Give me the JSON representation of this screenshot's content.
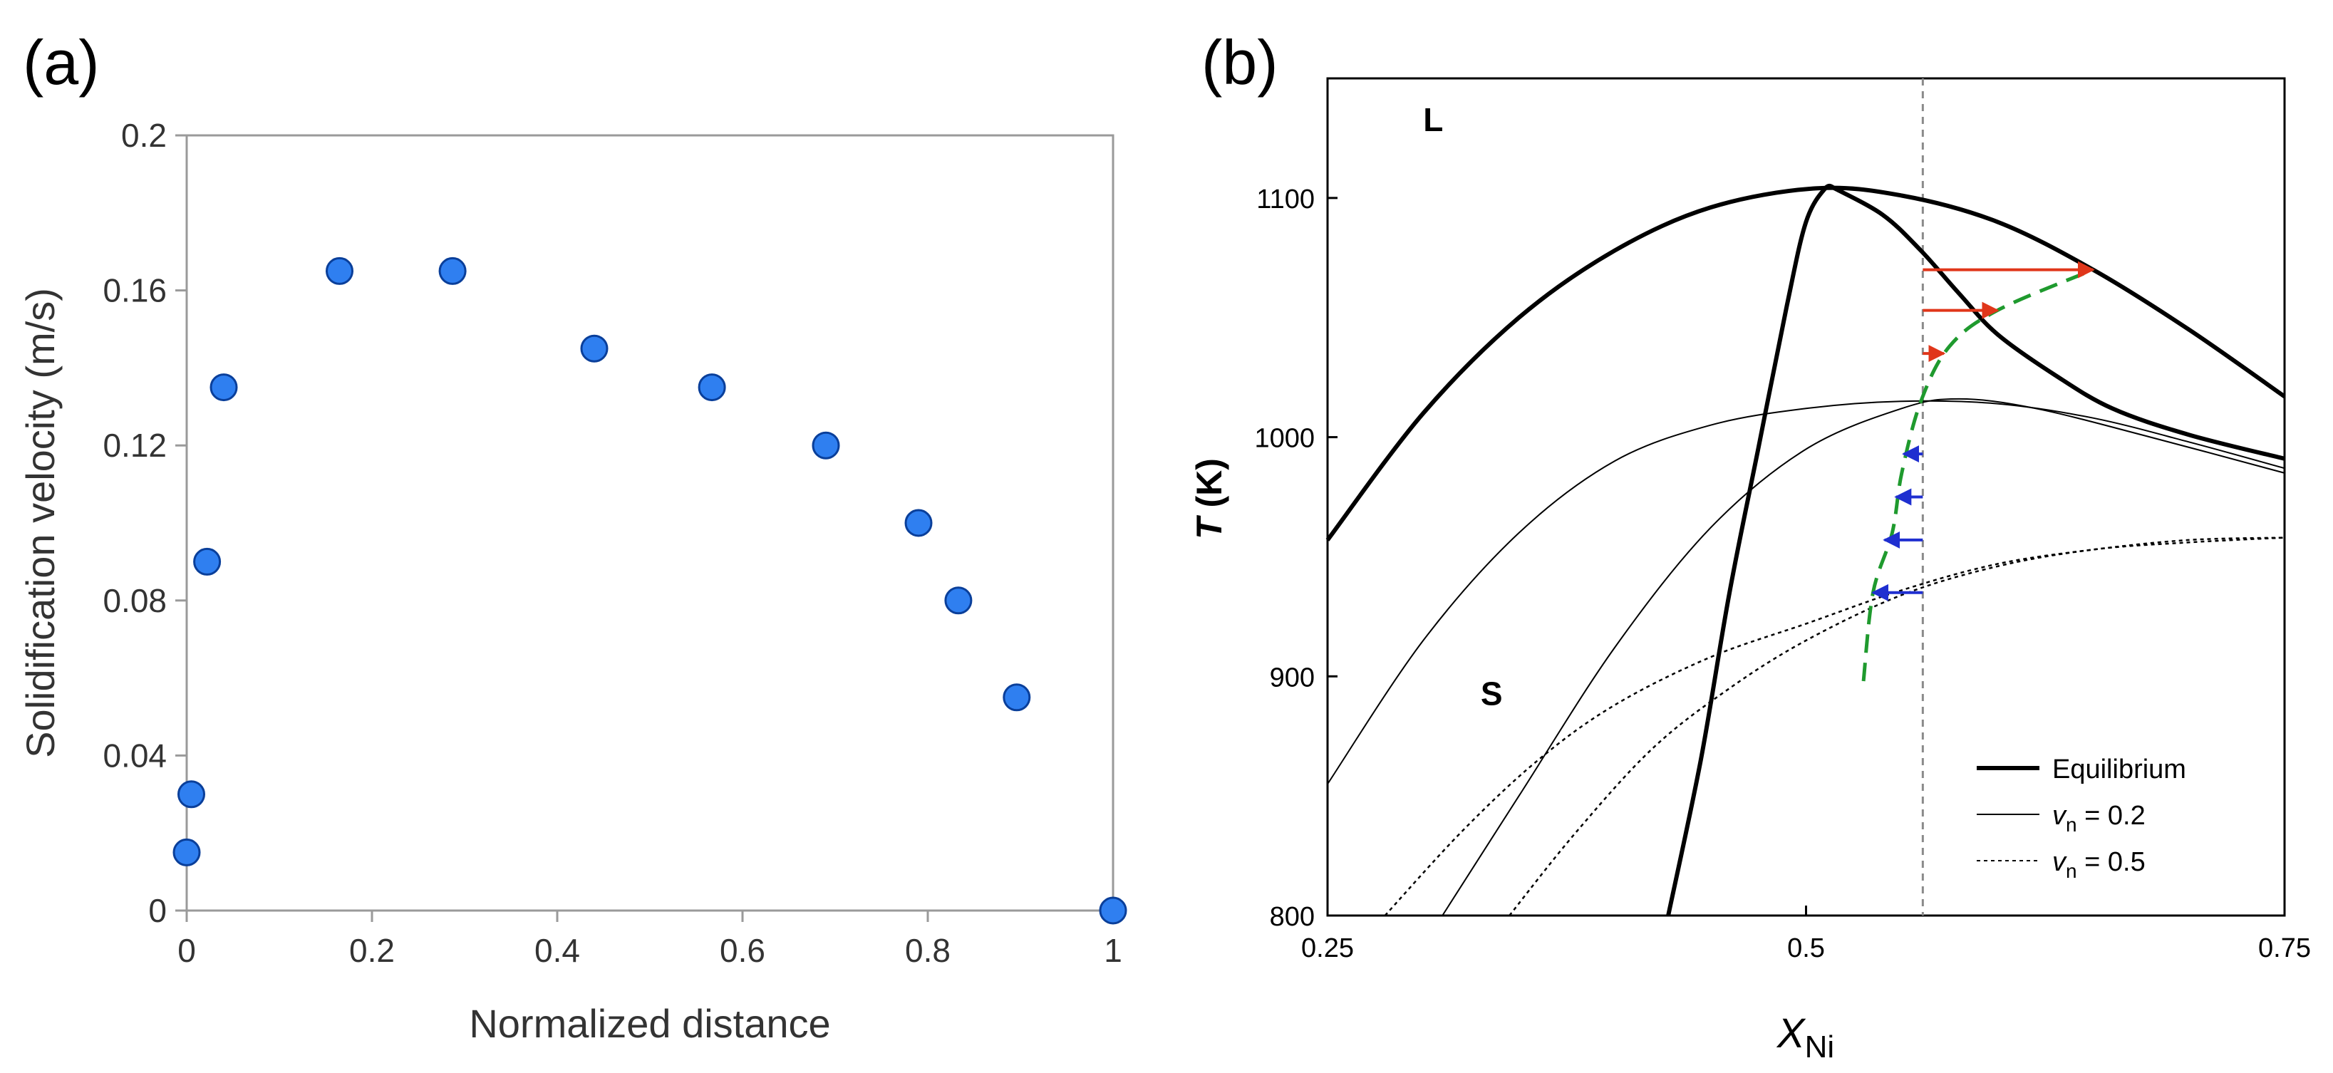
{
  "colors": {
    "marker_fill": "#2f7ff0",
    "marker_stroke": "#0a3f9a",
    "axis": "#9a9a9a",
    "red_arrow": "#e0361a",
    "blue_arrow": "#1f2fd0",
    "green_dash": "#1f9a2e",
    "curve": "#000000",
    "guide": "#8a8a8a"
  },
  "chart_data": [
    {
      "panel_label": "(a)",
      "type": "scatter",
      "title": "",
      "xlabel": "Normalized distance",
      "ylabel": "Solidification velocity (m/s)",
      "xlim": [
        0,
        1
      ],
      "ylim": [
        0,
        0.2
      ],
      "xticks": [
        0,
        0.2,
        0.4,
        0.6,
        0.8,
        1
      ],
      "xtick_labels": [
        "0",
        "0.2",
        "0.4",
        "0.6",
        "0.8",
        "1"
      ],
      "yticks": [
        0,
        0.04,
        0.08,
        0.12,
        0.16,
        0.2
      ],
      "ytick_labels": [
        "0",
        "0.04",
        "0.08",
        "0.12",
        "0.16",
        "0.2"
      ],
      "points": [
        {
          "x": 0.0,
          "y": 0.015
        },
        {
          "x": 0.005,
          "y": 0.03
        },
        {
          "x": 0.022,
          "y": 0.09
        },
        {
          "x": 0.04,
          "y": 0.135
        },
        {
          "x": 0.165,
          "y": 0.165
        },
        {
          "x": 0.287,
          "y": 0.165
        },
        {
          "x": 0.44,
          "y": 0.145
        },
        {
          "x": 0.567,
          "y": 0.135
        },
        {
          "x": 0.69,
          "y": 0.12
        },
        {
          "x": 0.79,
          "y": 0.1
        },
        {
          "x": 0.833,
          "y": 0.08
        },
        {
          "x": 0.896,
          "y": 0.055
        },
        {
          "x": 1.0,
          "y": 0.0
        }
      ]
    },
    {
      "panel_label": "(b)",
      "type": "line",
      "title": "",
      "xlabel_main": "X",
      "xlabel_sub": "Ni",
      "ylabel_italic": "T",
      "ylabel_rest": " (K)",
      "xlim": [
        0.25,
        0.75
      ],
      "ylim": [
        800,
        1150
      ],
      "xticks": [
        0.25,
        0.5,
        0.75
      ],
      "xtick_labels": [
        "0.25",
        "0.5",
        "0.75"
      ],
      "yticks": [
        800,
        900,
        1000,
        1100
      ],
      "ytick_labels": [
        "800",
        "900",
        "1000",
        "1100"
      ],
      "region_labels": [
        {
          "text": "L",
          "x": 0.3,
          "y": 1128
        },
        {
          "text": "S",
          "x": 0.33,
          "y": 888
        }
      ],
      "guide_x": 0.561,
      "legend": {
        "position": "bottom-right",
        "entries": [
          {
            "style": "equilibrium",
            "label": "Equilibrium",
            "var": "",
            "value": ""
          },
          {
            "style": "v02",
            "label": "",
            "var": "v",
            "sub": "n",
            "value": " = 0.2"
          },
          {
            "style": "v05",
            "label": "",
            "var": "v",
            "sub": "n",
            "value": " = 0.5"
          }
        ]
      },
      "series": [
        {
          "name": "Equilibrium liquidus",
          "style": "equilibrium",
          "points": [
            [
              0.25,
              957
            ],
            [
              0.3,
              1010
            ],
            [
              0.35,
              1050
            ],
            [
              0.4,
              1078
            ],
            [
              0.45,
              1096
            ],
            [
              0.505,
              1104
            ],
            [
              0.55,
              1101
            ],
            [
              0.6,
              1090
            ],
            [
              0.65,
              1070
            ],
            [
              0.7,
              1045
            ],
            [
              0.75,
              1017
            ]
          ]
        },
        {
          "name": "Equilibrium solidus (right)",
          "style": "equilibrium",
          "points": [
            [
              0.515,
              1104
            ],
            [
              0.54,
              1093
            ],
            [
              0.56,
              1078
            ],
            [
              0.58,
              1060
            ],
            [
              0.6,
              1043
            ],
            [
              0.63,
              1026
            ],
            [
              0.66,
              1012
            ],
            [
              0.7,
              1001
            ],
            [
              0.75,
              991
            ]
          ]
        },
        {
          "name": "Equilibrium solidus (left)",
          "style": "equilibrium",
          "points": [
            [
              0.428,
              800
            ],
            [
              0.445,
              865
            ],
            [
              0.46,
              935
            ],
            [
              0.475,
              995
            ],
            [
              0.49,
              1055
            ],
            [
              0.5,
              1090
            ],
            [
              0.51,
              1104
            ],
            [
              0.515,
              1104
            ]
          ]
        },
        {
          "name": "v=0.2 upper",
          "style": "v02",
          "points": [
            [
              0.25,
              855
            ],
            [
              0.3,
              915
            ],
            [
              0.35,
              960
            ],
            [
              0.4,
              990
            ],
            [
              0.45,
              1005
            ],
            [
              0.5,
              1012
            ],
            [
              0.55,
              1015
            ],
            [
              0.6,
              1014
            ],
            [
              0.65,
              1008
            ],
            [
              0.7,
              998
            ],
            [
              0.75,
              987
            ]
          ]
        },
        {
          "name": "v=0.2 lower",
          "style": "v02",
          "points": [
            [
              0.31,
              800
            ],
            [
              0.35,
              850
            ],
            [
              0.4,
              912
            ],
            [
              0.45,
              962
            ],
            [
              0.5,
              995
            ],
            [
              0.55,
              1012
            ],
            [
              0.58,
              1016
            ],
            [
              0.62,
              1012
            ],
            [
              0.68,
              1000
            ],
            [
              0.75,
              985
            ]
          ]
        },
        {
          "name": "v=0.5 upper",
          "style": "v05",
          "points": [
            [
              0.28,
              800
            ],
            [
              0.32,
              835
            ],
            [
              0.36,
              865
            ],
            [
              0.4,
              888
            ],
            [
              0.45,
              908
            ],
            [
              0.5,
              922
            ],
            [
              0.55,
              936
            ],
            [
              0.6,
              947
            ],
            [
              0.65,
              953
            ],
            [
              0.7,
              957
            ],
            [
              0.75,
              958
            ]
          ]
        },
        {
          "name": "v=0.5 lower",
          "style": "v05",
          "points": [
            [
              0.345,
              800
            ],
            [
              0.38,
              835
            ],
            [
              0.42,
              870
            ],
            [
              0.46,
              895
            ],
            [
              0.5,
              915
            ],
            [
              0.55,
              934
            ],
            [
              0.6,
              946
            ],
            [
              0.65,
              953
            ],
            [
              0.7,
              956
            ],
            [
              0.75,
              958
            ]
          ]
        },
        {
          "name": "Solidification path",
          "style": "green-dash",
          "points": [
            [
              0.53,
              898
            ],
            [
              0.535,
              935
            ],
            [
              0.545,
              960
            ],
            [
              0.55,
              985
            ],
            [
              0.56,
              1015
            ],
            [
              0.575,
              1038
            ],
            [
              0.6,
              1053
            ],
            [
              0.65,
              1070
            ]
          ]
        }
      ],
      "red_arrows": [
        {
          "x_from": 0.561,
          "x_to": 0.65,
          "y": 1070
        },
        {
          "x_from": 0.561,
          "x_to": 0.6,
          "y": 1053
        },
        {
          "x_from": 0.561,
          "x_to": 0.572,
          "y": 1035
        }
      ],
      "blue_arrows": [
        {
          "x_from": 0.561,
          "x_to": 0.551,
          "y": 993
        },
        {
          "x_from": 0.561,
          "x_to": 0.547,
          "y": 975
        },
        {
          "x_from": 0.561,
          "x_to": 0.541,
          "y": 957
        },
        {
          "x_from": 0.561,
          "x_to": 0.535,
          "y": 935
        }
      ]
    }
  ]
}
